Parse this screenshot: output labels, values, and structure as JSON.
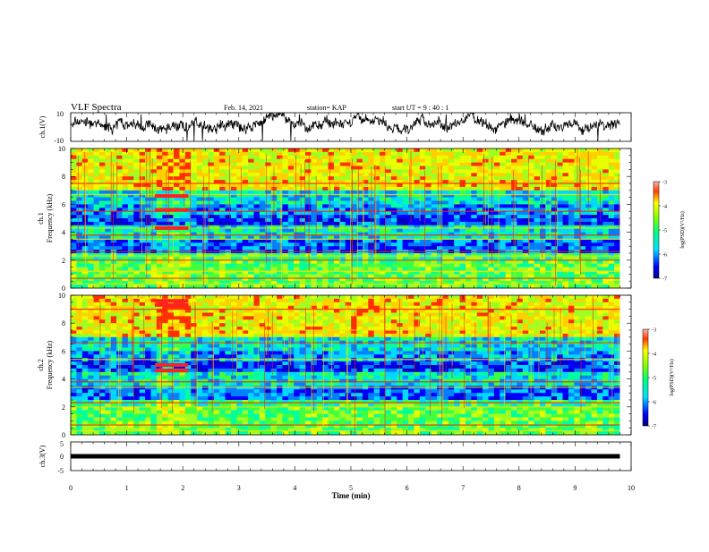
{
  "header": {
    "title": "VLF Spectra",
    "date": "Feb. 14, 2021",
    "station": "station= KAP",
    "start": "start  UT  =   9  : 40 : 1"
  },
  "chart_data": [
    {
      "type": "line",
      "ylabel": "ch.1(V)",
      "ylim": [
        -10,
        10
      ],
      "yticks": [
        "10",
        "-10"
      ],
      "color": "#000000"
    },
    {
      "type": "heatmap",
      "ylabel": "ch.1\nFrequency (kHz)",
      "ylabel_top": "ch.1",
      "ylabel_bottom": "Frequency  (kHz)",
      "ylim": [
        0,
        10
      ],
      "yticks": [
        "0",
        "2",
        "4",
        "6",
        "8",
        "10"
      ],
      "colorbar": {
        "label": "log(PSD)(V²/Hz)",
        "range": [
          -7,
          -3
        ],
        "ticks": [
          "-3",
          "-4",
          "-5",
          "-6",
          "-7"
        ]
      },
      "bands_khz": [
        0.3,
        0.7,
        1.2,
        2.0,
        2.3,
        2.6,
        3.5,
        3.8,
        4.3,
        5.5,
        6.7,
        7.5
      ],
      "burst_interval_min": [
        1.5,
        2.1
      ],
      "burst_bands_khz": [
        4.3,
        5.6,
        6.6
      ]
    },
    {
      "type": "heatmap",
      "ylabel": "ch.2\nFrequency (kHz)",
      "ylabel_top": "ch.2",
      "ylabel_bottom": "Frequency  (kHz)",
      "ylim": [
        0,
        10
      ],
      "yticks": [
        "0",
        "2",
        "4",
        "6",
        "8",
        "10"
      ],
      "colorbar": {
        "label": "log(PSD)(V²/Hz)",
        "range": [
          -7,
          -3
        ],
        "ticks": [
          "-3",
          "-4",
          "-5",
          "-6",
          "-7"
        ]
      },
      "bands_khz": [
        0.3,
        0.7,
        2.0,
        2.3,
        3.4,
        3.8,
        5.4,
        6.6,
        7.5,
        9.0
      ],
      "burst_interval_min": [
        1.5,
        2.1
      ],
      "burst_bands_khz": [
        4.6,
        5.0,
        9.3,
        9.6
      ]
    },
    {
      "type": "line",
      "ylabel": "ch.3(V)",
      "ylim": [
        -5,
        5
      ],
      "yticks": [
        "5",
        "0",
        "-5"
      ],
      "value": 0,
      "color": "#000000"
    }
  ],
  "xaxis": {
    "label": "Time  (min)",
    "xlim": [
      0,
      10
    ],
    "data_end": 9.8,
    "ticks": [
      "0",
      "1",
      "2",
      "3",
      "4",
      "5",
      "6",
      "7",
      "8",
      "9",
      "10"
    ]
  }
}
